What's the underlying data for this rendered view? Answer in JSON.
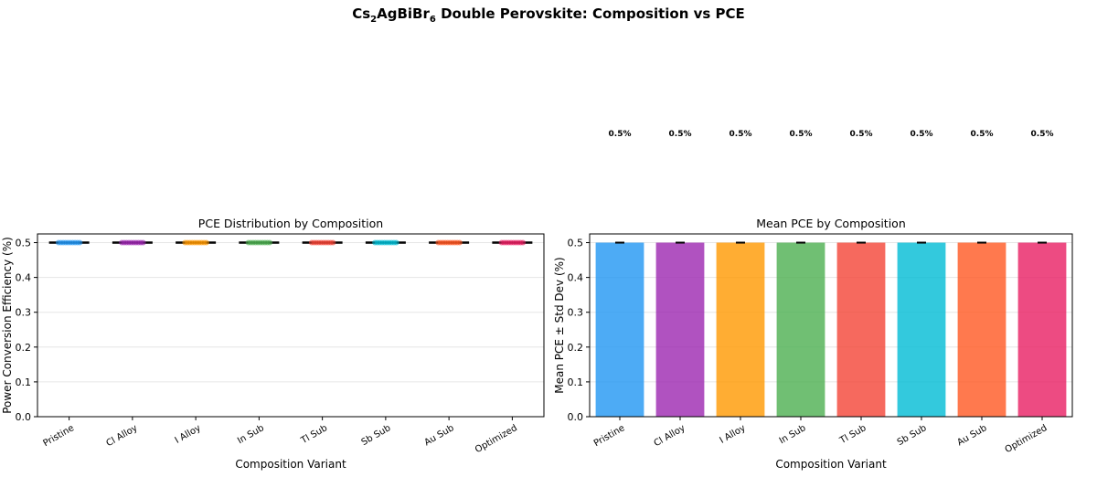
{
  "figure": {
    "title_prefix": "Cs",
    "title_sub1": "2",
    "title_mid": "AgBiBr",
    "title_sub2": "6",
    "title_suffix": " Double Perovskite: Composition vs PCE"
  },
  "chart_data": [
    {
      "type": "box-strip",
      "title": "PCE Distribution by Composition",
      "xlabel": "Composition Variant",
      "ylabel": "Power Conversion Efficiency (%)",
      "categories": [
        "Pristine",
        "Cl Alloy",
        "I Alloy",
        "In Sub",
        "Tl Sub",
        "Sb Sub",
        "Au Sub",
        "Optimized"
      ],
      "values": [
        0.5,
        0.5,
        0.5,
        0.5,
        0.5,
        0.5,
        0.5,
        0.5
      ],
      "ylim": [
        0,
        0.525
      ],
      "yticks": [
        "0.0",
        "0.1",
        "0.2",
        "0.3",
        "0.4",
        "0.5"
      ],
      "grid": "y"
    },
    {
      "type": "bar",
      "title": "Mean PCE by Composition",
      "xlabel": "Composition Variant",
      "ylabel": "Mean PCE ± Std Dev (%)",
      "categories": [
        "Pristine",
        "Cl Alloy",
        "I Alloy",
        "In Sub",
        "Tl Sub",
        "Sb Sub",
        "Au Sub",
        "Optimized"
      ],
      "values": [
        0.5,
        0.5,
        0.5,
        0.5,
        0.5,
        0.5,
        0.5,
        0.5
      ],
      "errors": [
        0,
        0,
        0,
        0,
        0,
        0,
        0,
        0
      ],
      "data_labels": [
        "0.5%",
        "0.5%",
        "0.5%",
        "0.5%",
        "0.5%",
        "0.5%",
        "0.5%",
        "0.5%"
      ],
      "ylim": [
        0,
        0.525
      ],
      "yticks": [
        "0.0",
        "0.1",
        "0.2",
        "0.3",
        "0.4",
        "0.5"
      ],
      "grid": "y"
    }
  ],
  "colors": [
    "#2196F3",
    "#9C27B0",
    "#FF9800",
    "#4CAF50",
    "#F44336",
    "#00BCD4",
    "#FF5722",
    "#E91E63"
  ]
}
